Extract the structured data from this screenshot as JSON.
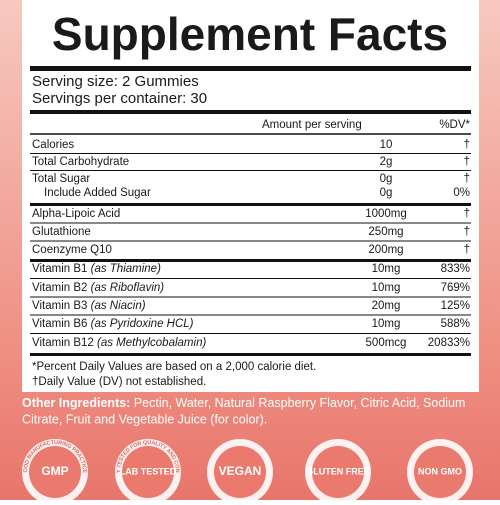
{
  "header": {
    "title": "Supplement Facts",
    "serving_size": "Serving size: 2 Gummies",
    "servings_per_container": "Servings per container: 30"
  },
  "table": {
    "columns": [
      "Amount per serving",
      "%DV*"
    ],
    "rows": [
      {
        "name": "Calories",
        "amount": "10",
        "dv": "†"
      },
      {
        "name": "Total Carbohydrate",
        "amount": "2g",
        "dv": "†"
      },
      {
        "name": "Total Sugar",
        "amount": "0g",
        "dv": "†"
      },
      {
        "name": "Include Added Sugar",
        "amount": "0g",
        "dv": "0%"
      },
      {
        "name": "Alpha-Lipoic Acid",
        "amount": "1000mg",
        "dv": "†"
      },
      {
        "name": "Glutathione",
        "amount": "250mg",
        "dv": "†"
      },
      {
        "name": "Coenzyme Q10",
        "amount": "200mg",
        "dv": "†"
      },
      {
        "name": "Vitamin B1",
        "source": "(as Thiamine)",
        "amount": "10mg",
        "dv": "833%"
      },
      {
        "name": "Vitamin B2",
        "source": "(as Riboflavin)",
        "amount": "10mg",
        "dv": "769%"
      },
      {
        "name": "Vitamin B3",
        "source": "(as Niacin)",
        "amount": "20mg",
        "dv": "125%"
      },
      {
        "name": "Vitamin B6",
        "source": "(as Pyridoxine HCL)",
        "amount": "10mg",
        "dv": "588%"
      },
      {
        "name": "Vitamin B12",
        "source": "(as Methylcobalamin)",
        "amount": "500mcg",
        "dv": "20833%"
      }
    ]
  },
  "footnotes": [
    "*Percent Daily Values are based on a 2,000 calorie diet.",
    "†Daily Value (DV) not established."
  ],
  "other_ingredients": {
    "label": "Other Ingredients:",
    "lines": [
      "Pectin, Water, Natural Raspberry Flavor, Citric Acid, Sodium",
      "Citrate, Fruit and Vegetable Juice (for color)."
    ]
  },
  "badges": [
    {
      "label": "GMP",
      "ring": "GOOD MANUFACTURING PRACTICES"
    },
    {
      "label": "LAB TESTED",
      "ring": "3RD PARTY TESTED FOR QUALITY AND CONSISTENCY"
    },
    {
      "label": "VEGAN"
    },
    {
      "label": "GLUTEN FREE"
    },
    {
      "label": "NON GMO"
    }
  ]
}
